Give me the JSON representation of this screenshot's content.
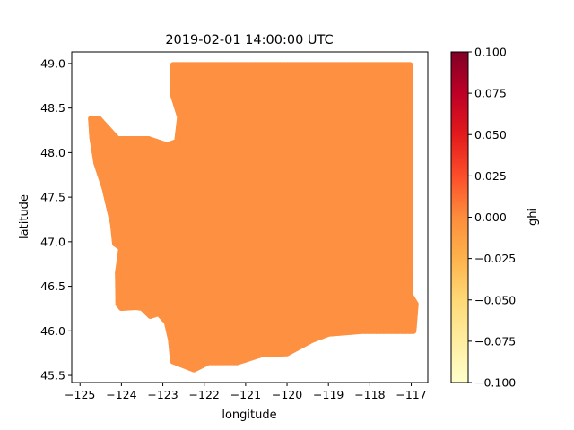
{
  "chart_data": {
    "type": "scatter",
    "title": "2019-02-01 14:00:00 UTC",
    "xlabel": "longitude",
    "ylabel": "latitude",
    "xlim": [
      -125.2,
      -116.6
    ],
    "ylim": [
      45.42,
      49.13
    ],
    "x_ticks": [
      -125,
      -124,
      -123,
      -122,
      -121,
      -120,
      -119,
      -118,
      -117
    ],
    "x_tick_labels": [
      "−125",
      "−124",
      "−123",
      "−122",
      "−121",
      "−120",
      "−119",
      "−118",
      "−117"
    ],
    "y_ticks": [
      45.5,
      46.0,
      46.5,
      47.0,
      47.5,
      48.0,
      48.5,
      49.0
    ],
    "y_tick_labels": [
      "45.5",
      "46.0",
      "46.5",
      "47.0",
      "47.5",
      "48.0",
      "48.5",
      "49.0"
    ],
    "grid": false,
    "point_value": 0.0,
    "point_color": "#fd9141",
    "region_outline_lonlat": [
      [
        -122.6,
        48.98
      ],
      [
        -117.03,
        48.98
      ],
      [
        -117.03,
        46.4
      ],
      [
        -116.9,
        46.3
      ],
      [
        -116.95,
        46.0
      ],
      [
        -118.2,
        46.0
      ],
      [
        -119.0,
        45.97
      ],
      [
        -119.4,
        45.9
      ],
      [
        -120.0,
        45.75
      ],
      [
        -120.6,
        45.74
      ],
      [
        -121.2,
        45.65
      ],
      [
        -121.9,
        45.65
      ],
      [
        -122.25,
        45.57
      ],
      [
        -122.75,
        45.66
      ],
      [
        -122.8,
        45.9
      ],
      [
        -122.9,
        46.1
      ],
      [
        -123.1,
        46.2
      ],
      [
        -123.3,
        46.17
      ],
      [
        -123.5,
        46.26
      ],
      [
        -123.65,
        46.27
      ],
      [
        -124.0,
        46.26
      ],
      [
        -124.07,
        46.3
      ],
      [
        -124.08,
        46.65
      ],
      [
        -124.0,
        46.93
      ],
      [
        -124.15,
        46.98
      ],
      [
        -124.2,
        47.2
      ],
      [
        -124.4,
        47.6
      ],
      [
        -124.6,
        47.88
      ],
      [
        -124.7,
        48.17
      ],
      [
        -124.73,
        48.38
      ],
      [
        -124.55,
        48.38
      ],
      [
        -124.1,
        48.15
      ],
      [
        -123.35,
        48.15
      ],
      [
        -122.9,
        48.08
      ],
      [
        -122.65,
        48.12
      ],
      [
        -122.58,
        48.4
      ],
      [
        -122.75,
        48.65
      ],
      [
        -122.75,
        48.98
      ]
    ],
    "colorbar": {
      "label": "ghi",
      "cmap": "YlOrRd",
      "range": [
        -0.1,
        0.1
      ],
      "ticks": [
        0.1,
        0.075,
        0.05,
        0.025,
        0.0,
        -0.025,
        -0.05,
        -0.075,
        -0.1
      ],
      "tick_labels": [
        "0.100",
        "0.075",
        "0.050",
        "0.025",
        "0.000",
        "−0.025",
        "−0.050",
        "−0.075",
        "−0.100"
      ],
      "gradient_colors": [
        "#ffffcc",
        "#ffeda0",
        "#fed976",
        "#feb24c",
        "#fd8d3c",
        "#fc4e2a",
        "#e31a1c",
        "#bd0026",
        "#800026"
      ]
    }
  }
}
